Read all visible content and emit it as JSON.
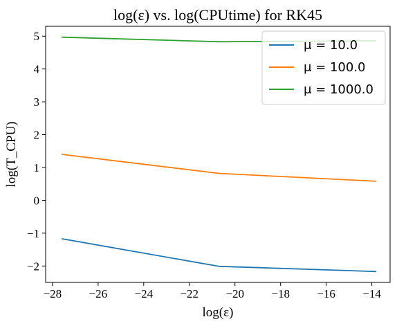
{
  "chart_data": {
    "type": "line",
    "title": "log(ε) vs. log(CPUtime) for RK45",
    "xlabel": "log(ε)",
    "ylabel": "log(T_CPU)",
    "xlim": [
      -28.3,
      -13.2
    ],
    "ylim": [
      -2.5,
      5.3
    ],
    "xticks": [
      -28,
      -26,
      -24,
      -22,
      -20,
      -18,
      -16,
      -14
    ],
    "xtick_labels": [
      "−28",
      "−26",
      "−24",
      "−22",
      "−20",
      "−18",
      "−16",
      "−14"
    ],
    "yticks": [
      -2,
      -1,
      0,
      1,
      2,
      3,
      4,
      5
    ],
    "ytick_labels": [
      "−2",
      "−1",
      "0",
      "1",
      "2",
      "3",
      "4",
      "5"
    ],
    "grid": false,
    "legend_position": "top-right",
    "series": [
      {
        "name": "μ = 10.0",
        "color": "#1f77b4",
        "x": [
          -27.6,
          -20.7,
          -13.8
        ],
        "y": [
          -1.17,
          -2.01,
          -2.17
        ]
      },
      {
        "name": "μ = 100.0",
        "color": "#ff7f0e",
        "x": [
          -27.6,
          -20.7,
          -13.8
        ],
        "y": [
          1.4,
          0.82,
          0.58
        ]
      },
      {
        "name": "μ = 1000.0",
        "color": "#2ca02c",
        "x": [
          -27.6,
          -20.7,
          -13.8
        ],
        "y": [
          4.97,
          4.83,
          4.86
        ]
      }
    ]
  }
}
